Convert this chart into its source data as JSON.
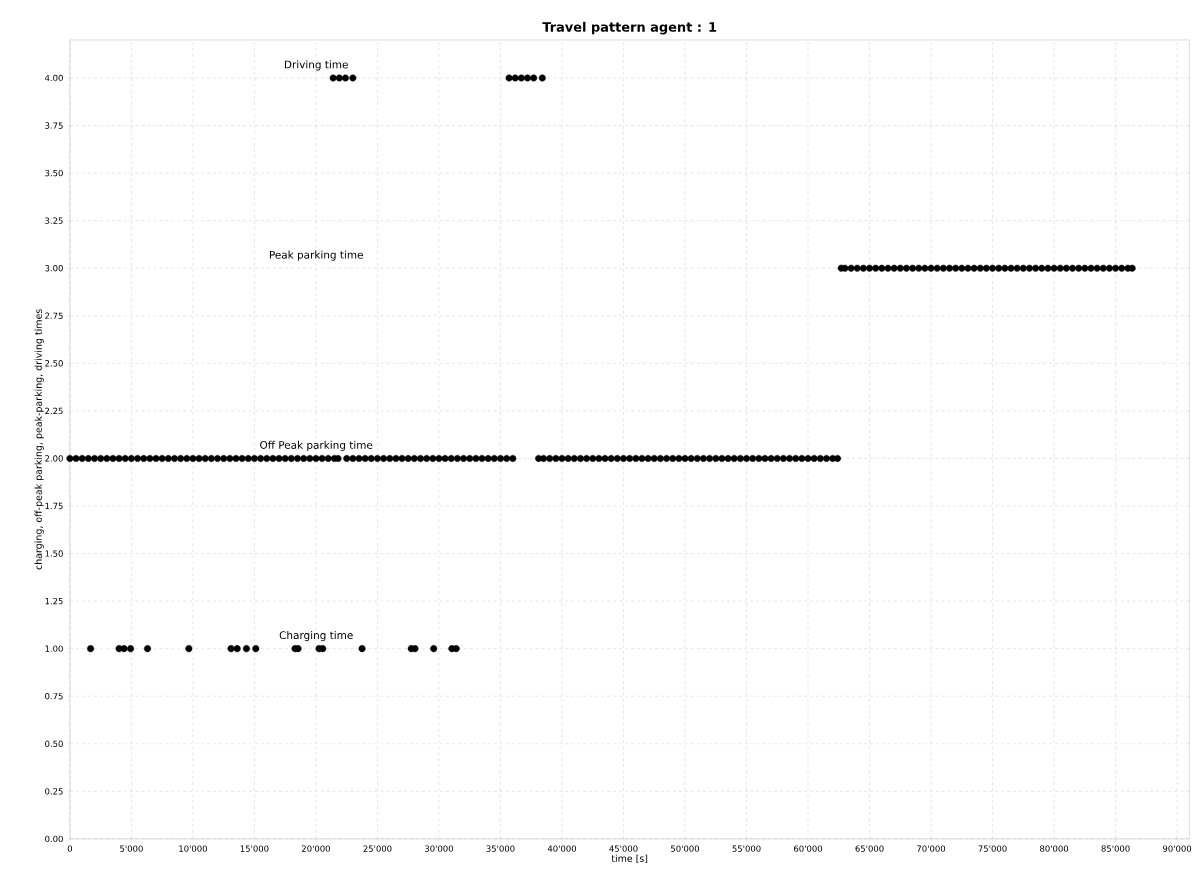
{
  "chart_data": {
    "type": "scatter",
    "title": "Travel pattern agent : 1",
    "xlabel": "time [s]",
    "ylabel": "charging, off-peak parking, peak-parking, driving times",
    "xlim": [
      0,
      91000
    ],
    "ylim": [
      0,
      4.2
    ],
    "xticks": [
      {
        "value": 0,
        "label": "0"
      },
      {
        "value": 5000,
        "label": "5'000"
      },
      {
        "value": 10000,
        "label": "10'000"
      },
      {
        "value": 15000,
        "label": "15'000"
      },
      {
        "value": 20000,
        "label": "20'000"
      },
      {
        "value": 25000,
        "label": "25'000"
      },
      {
        "value": 30000,
        "label": "30'000"
      },
      {
        "value": 35000,
        "label": "35'000"
      },
      {
        "value": 40000,
        "label": "40'000"
      },
      {
        "value": 45000,
        "label": "45'000"
      },
      {
        "value": 50000,
        "label": "50'000"
      },
      {
        "value": 55000,
        "label": "55'000"
      },
      {
        "value": 60000,
        "label": "60'000"
      },
      {
        "value": 65000,
        "label": "65'000"
      },
      {
        "value": 70000,
        "label": "70'000"
      },
      {
        "value": 75000,
        "label": "75'000"
      },
      {
        "value": 80000,
        "label": "80'000"
      },
      {
        "value": 85000,
        "label": "85'000"
      },
      {
        "value": 90000,
        "label": "90'000"
      }
    ],
    "yticks": [
      {
        "value": 0,
        "label": "0.00"
      },
      {
        "value": 0.25,
        "label": "0.25"
      },
      {
        "value": 0.5,
        "label": "0.50"
      },
      {
        "value": 0.75,
        "label": "0.75"
      },
      {
        "value": 1,
        "label": "1.00"
      },
      {
        "value": 1.25,
        "label": "1.25"
      },
      {
        "value": 1.5,
        "label": "1.50"
      },
      {
        "value": 1.75,
        "label": "1.75"
      },
      {
        "value": 2,
        "label": "2.00"
      },
      {
        "value": 2.25,
        "label": "2.25"
      },
      {
        "value": 2.5,
        "label": "2.50"
      },
      {
        "value": 2.75,
        "label": "2.75"
      },
      {
        "value": 3,
        "label": "3.00"
      },
      {
        "value": 3.25,
        "label": "3.25"
      },
      {
        "value": 3.5,
        "label": "3.50"
      },
      {
        "value": 3.75,
        "label": "3.75"
      },
      {
        "value": 4,
        "label": "4.00"
      }
    ],
    "grid": true,
    "marker": "circle",
    "annotations": [
      "Driving time",
      "Peak parking time",
      "Off Peak parking time",
      "Charging time"
    ],
    "series": [
      {
        "color": "#000000",
        "x": [
          21400,
          21900,
          22400,
          23000,
          35700,
          36200,
          36700,
          37200,
          37700,
          38400
        ],
        "values": [
          4,
          4,
          4,
          4,
          4,
          4,
          4,
          4,
          4,
          4
        ]
      },
      {
        "color": "#000000",
        "x": [
          62700,
          63000,
          63500,
          64000,
          64500,
          65000,
          65500,
          66000,
          66500,
          67000,
          67500,
          68000,
          68500,
          69000,
          69500,
          70000,
          70500,
          71000,
          71500,
          72000,
          72500,
          73000,
          73500,
          74000,
          74500,
          75000,
          75500,
          76000,
          76500,
          77000,
          77500,
          78000,
          78500,
          79000,
          79500,
          80000,
          80500,
          81000,
          81500,
          82000,
          82500,
          83000,
          83500,
          84000,
          84500,
          85000,
          85500,
          86000,
          86350
        ],
        "values": [
          3,
          3,
          3,
          3,
          3,
          3,
          3,
          3,
          3,
          3,
          3,
          3,
          3,
          3,
          3,
          3,
          3,
          3,
          3,
          3,
          3,
          3,
          3,
          3,
          3,
          3,
          3,
          3,
          3,
          3,
          3,
          3,
          3,
          3,
          3,
          3,
          3,
          3,
          3,
          3,
          3,
          3,
          3,
          3,
          3,
          3,
          3,
          3,
          3
        ]
      },
      {
        "color": "#000000",
        "x": [
          0,
          500,
          1000,
          1500,
          2000,
          2500,
          3000,
          3500,
          4000,
          4500,
          5000,
          5500,
          6000,
          6500,
          7000,
          7500,
          8000,
          8500,
          9000,
          9500,
          10000,
          10500,
          11000,
          11500,
          12000,
          12500,
          13000,
          13500,
          14000,
          14500,
          15000,
          15500,
          16000,
          16500,
          17000,
          17500,
          18000,
          18500,
          19000,
          19500,
          20000,
          20500,
          21000,
          21500,
          21800,
          22500,
          23000,
          23500,
          24000,
          24500,
          25000,
          25500,
          26000,
          26500,
          27000,
          27500,
          28000,
          28500,
          29000,
          29500,
          30000,
          30500,
          31000,
          31500,
          32000,
          32500,
          33000,
          33500,
          34000,
          34500,
          35000,
          35500,
          36000,
          38100,
          38500,
          39000,
          39500,
          40000,
          40500,
          41000,
          41500,
          42000,
          42500,
          43000,
          43500,
          44000,
          44500,
          45000,
          45500,
          46000,
          46500,
          47000,
          47500,
          48000,
          48500,
          49000,
          49500,
          50000,
          50500,
          51000,
          51500,
          52000,
          52500,
          53000,
          53500,
          54000,
          54500,
          55000,
          55500,
          56000,
          56500,
          57000,
          57500,
          58000,
          58500,
          59000,
          59500,
          60000,
          60500,
          61000,
          61500,
          62000,
          62400
        ],
        "values": [
          2,
          2,
          2,
          2,
          2,
          2,
          2,
          2,
          2,
          2,
          2,
          2,
          2,
          2,
          2,
          2,
          2,
          2,
          2,
          2,
          2,
          2,
          2,
          2,
          2,
          2,
          2,
          2,
          2,
          2,
          2,
          2,
          2,
          2,
          2,
          2,
          2,
          2,
          2,
          2,
          2,
          2,
          2,
          2,
          2,
          2,
          2,
          2,
          2,
          2,
          2,
          2,
          2,
          2,
          2,
          2,
          2,
          2,
          2,
          2,
          2,
          2,
          2,
          2,
          2,
          2,
          2,
          2,
          2,
          2,
          2,
          2,
          2,
          2,
          2,
          2,
          2,
          2,
          2,
          2,
          2,
          2,
          2,
          2,
          2,
          2,
          2,
          2,
          2,
          2,
          2,
          2,
          2,
          2,
          2,
          2,
          2,
          2,
          2,
          2,
          2,
          2,
          2,
          2,
          2,
          2,
          2,
          2,
          2,
          2,
          2,
          2,
          2,
          2,
          2,
          2,
          2,
          2,
          2,
          2,
          2,
          2,
          2
        ]
      },
      {
        "color": "#000000",
        "x": [
          1680,
          4000,
          4400,
          4930,
          6310,
          9670,
          13100,
          13600,
          14350,
          15110,
          18300,
          18550,
          20250,
          20550,
          23750,
          27750,
          28050,
          29570,
          31050,
          31400
        ],
        "values": [
          1,
          1,
          1,
          1,
          1,
          1,
          1,
          1,
          1,
          1,
          1,
          1,
          1,
          1,
          1,
          1,
          1,
          1,
          1,
          1
        ]
      }
    ]
  }
}
